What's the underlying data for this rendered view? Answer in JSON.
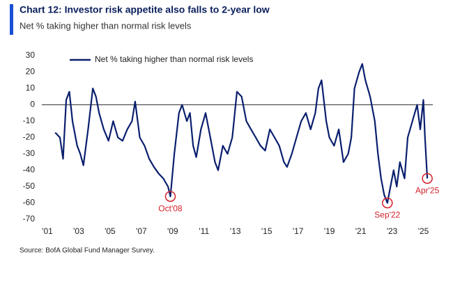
{
  "chart_data": {
    "type": "line",
    "title": "Chart 12: Investor risk appetite also falls to 2-year low",
    "subtitle": "Net % taking higher than normal risk levels",
    "source": "Source: BofA Global Fund Manager Survey.",
    "x": [
      2001.5,
      2001.8,
      2002.0,
      2002.2,
      2002.4,
      2002.6,
      2002.9,
      2003.1,
      2003.3,
      2003.6,
      2003.9,
      2004.1,
      2004.3,
      2004.6,
      2004.9,
      2005.2,
      2005.5,
      2005.8,
      2006.1,
      2006.4,
      2006.6,
      2006.9,
      2007.2,
      2007.5,
      2007.8,
      2008.1,
      2008.4,
      2008.7,
      2008.85,
      2009.1,
      2009.4,
      2009.6,
      2009.9,
      2010.1,
      2010.3,
      2010.5,
      2010.8,
      2011.1,
      2011.4,
      2011.7,
      2011.9,
      2012.2,
      2012.5,
      2012.8,
      2013.1,
      2013.4,
      2013.7,
      2014.0,
      2014.3,
      2014.6,
      2014.9,
      2015.2,
      2015.5,
      2015.8,
      2016.1,
      2016.3,
      2016.6,
      2016.9,
      2017.2,
      2017.5,
      2017.8,
      2018.1,
      2018.3,
      2018.5,
      2018.8,
      2019.0,
      2019.3,
      2019.6,
      2019.9,
      2020.2,
      2020.4,
      2020.6,
      2020.9,
      2021.1,
      2021.3,
      2021.6,
      2021.9,
      2022.1,
      2022.3,
      2022.5,
      2022.7,
      2022.9,
      2023.1,
      2023.3,
      2023.5,
      2023.8,
      2024.0,
      2024.3,
      2024.6,
      2024.8,
      2025.0,
      2025.1,
      2025.25
    ],
    "series": [
      {
        "name": "Net % taking higher than normal risk levels",
        "color": "#0a1f6e",
        "values": [
          -17,
          -20,
          -33,
          3,
          8,
          -10,
          -25,
          -30,
          -37,
          -15,
          10,
          5,
          -5,
          -15,
          -22,
          -10,
          -20,
          -22,
          -15,
          -10,
          2,
          -20,
          -25,
          -33,
          -38,
          -42,
          -45,
          -50,
          -56,
          -30,
          -5,
          0,
          -10,
          -5,
          -25,
          -32,
          -15,
          -5,
          -20,
          -35,
          -40,
          -25,
          -30,
          -20,
          8,
          5,
          -10,
          -15,
          -20,
          -25,
          -28,
          -15,
          -20,
          -25,
          -35,
          -38,
          -30,
          -20,
          -10,
          -5,
          -15,
          -5,
          10,
          15,
          -10,
          -20,
          -25,
          -15,
          -35,
          -30,
          -20,
          10,
          20,
          25,
          15,
          5,
          -10,
          -30,
          -45,
          -55,
          -60,
          -50,
          -40,
          -50,
          -35,
          -45,
          -20,
          -10,
          0,
          -15,
          3,
          -20,
          -45
        ]
      }
    ],
    "annotations": [
      {
        "text": "Oct'08",
        "x": 2008.85,
        "y": -56
      },
      {
        "text": "Sep'22",
        "x": 2022.7,
        "y": -60
      },
      {
        "text": "Apr'25",
        "x": 2025.25,
        "y": -45
      }
    ],
    "xlim": [
      2001,
      2025.6
    ],
    "xticks": [
      {
        "value": 2001,
        "label": "'01"
      },
      {
        "value": 2003,
        "label": "'03"
      },
      {
        "value": 2005,
        "label": "'05"
      },
      {
        "value": 2007,
        "label": "'07"
      },
      {
        "value": 2009,
        "label": "'09"
      },
      {
        "value": 2011,
        "label": "'11"
      },
      {
        "value": 2013,
        "label": "'13"
      },
      {
        "value": 2015,
        "label": "'15"
      },
      {
        "value": 2017,
        "label": "'17"
      },
      {
        "value": 2019,
        "label": "'19"
      },
      {
        "value": 2021,
        "label": "'21"
      },
      {
        "value": 2023,
        "label": "'23"
      },
      {
        "value": 2025,
        "label": "'25"
      }
    ],
    "ylim": [
      -70,
      30
    ],
    "yticks": [
      -70,
      -60,
      -50,
      -40,
      -30,
      -20,
      -10,
      0,
      10,
      20,
      30
    ],
    "legend": "top-left"
  }
}
